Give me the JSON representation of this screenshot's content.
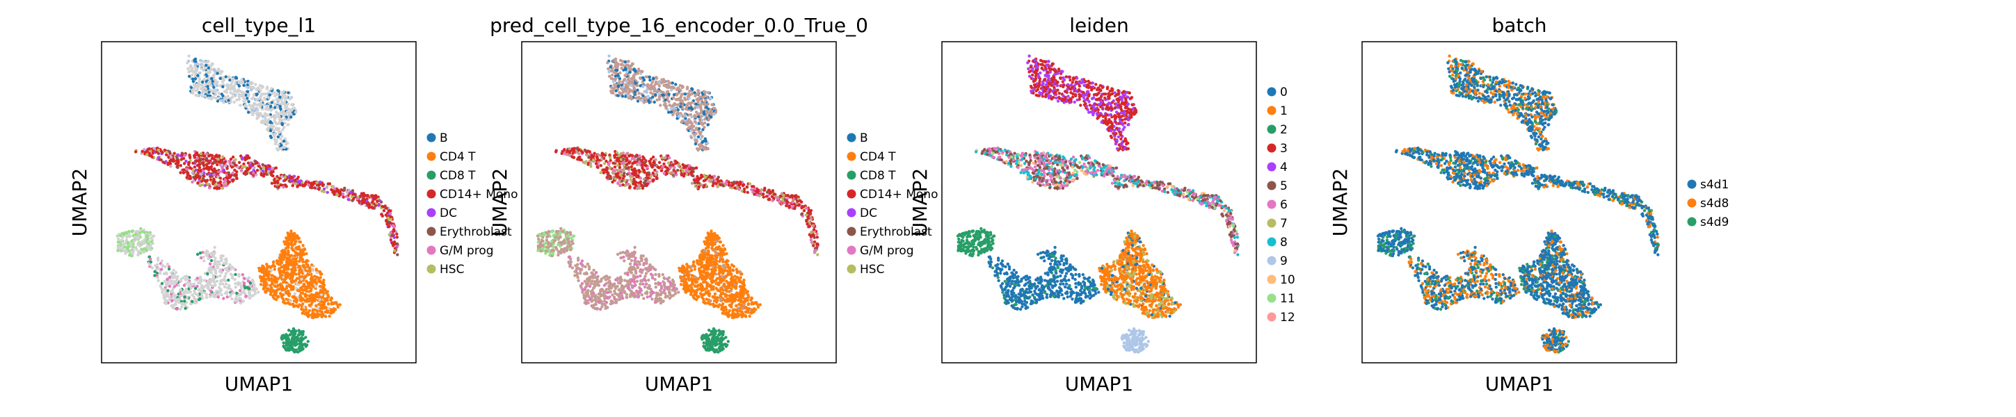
{
  "chart_data": [
    {
      "type": "scatter",
      "title": "cell_type_l1",
      "xlabel": "UMAP1",
      "ylabel": "UMAP2",
      "grid": false,
      "legend_placement": "right",
      "legend": [
        {
          "label": "B",
          "color": "#1f77b4"
        },
        {
          "label": "CD4 T",
          "color": "#ff7f0e"
        },
        {
          "label": "CD8 T",
          "color": "#279e68"
        },
        {
          "label": "CD14+ Mono",
          "color": "#d62728"
        },
        {
          "label": "DC",
          "color": "#aa40fc"
        },
        {
          "label": "Erythroblast",
          "color": "#8c564b"
        },
        {
          "label": "G/M prog",
          "color": "#e377c2"
        },
        {
          "label": "HSC",
          "color": "#b5bd61"
        }
      ],
      "unlabeled_color": "#d3d3d3",
      "clusters": {
        "top_cluster": [
          {
            "color": "#d3d3d3",
            "fraction": 0.75
          },
          {
            "color": "#1f77b4",
            "fraction": 0.2
          },
          {
            "color": "#aec7e8",
            "fraction": 0.05
          }
        ],
        "middle_band": [
          {
            "color": "#d62728",
            "fraction": 0.55
          },
          {
            "color": "#aa40fc",
            "fraction": 0.1
          },
          {
            "color": "#b5bd61",
            "fraction": 0.1
          },
          {
            "color": "#e377c2",
            "fraction": 0.1
          },
          {
            "color": "#c5b0d5",
            "fraction": 0.05
          },
          {
            "color": "#8c564b",
            "fraction": 0.1
          }
        ],
        "bottom_left": [
          {
            "color": "#98df8a",
            "fraction": 0.5
          },
          {
            "color": "#d3d3d3",
            "fraction": 0.5
          }
        ],
        "bottom_mid": [
          {
            "color": "#d3d3d3",
            "fraction": 0.8
          },
          {
            "color": "#279e68",
            "fraction": 0.1
          },
          {
            "color": "#e377c2",
            "fraction": 0.1
          }
        ],
        "bottom_right": [
          {
            "color": "#ff7f0e",
            "fraction": 0.92
          },
          {
            "color": "#d3d3d3",
            "fraction": 0.08
          }
        ],
        "bottom_blob": [
          {
            "color": "#279e68",
            "fraction": 1.0
          }
        ]
      }
    },
    {
      "type": "scatter",
      "title": "pred_cell_type_16_encoder_0.0_True_0",
      "xlabel": "UMAP1",
      "ylabel": "UMAP2",
      "grid": false,
      "legend_placement": "right",
      "legend": [
        {
          "label": "B",
          "color": "#1f77b4"
        },
        {
          "label": "CD4 T",
          "color": "#ff7f0e"
        },
        {
          "label": "CD8 T",
          "color": "#279e68"
        },
        {
          "label": "CD14+ Mono",
          "color": "#d62728"
        },
        {
          "label": "DC",
          "color": "#aa40fc"
        },
        {
          "label": "Erythroblast",
          "color": "#8c564b"
        },
        {
          "label": "G/M prog",
          "color": "#e377c2"
        },
        {
          "label": "HSC",
          "color": "#b5bd61"
        }
      ],
      "clusters": {
        "top_cluster": [
          {
            "color": "#c49c94",
            "fraction": 0.65
          },
          {
            "color": "#1f77b4",
            "fraction": 0.25
          },
          {
            "color": "#aec7e8",
            "fraction": 0.1
          }
        ],
        "middle_band": [
          {
            "color": "#d62728",
            "fraction": 0.55
          },
          {
            "color": "#e377c2",
            "fraction": 0.15
          },
          {
            "color": "#b5bd61",
            "fraction": 0.1
          },
          {
            "color": "#c49c94",
            "fraction": 0.1
          },
          {
            "color": "#8c564b",
            "fraction": 0.1
          }
        ],
        "bottom_left": [
          {
            "color": "#98df8a",
            "fraction": 0.4
          },
          {
            "color": "#c49c94",
            "fraction": 0.6
          }
        ],
        "bottom_mid": [
          {
            "color": "#c49c94",
            "fraction": 0.8
          },
          {
            "color": "#e377c2",
            "fraction": 0.2
          }
        ],
        "bottom_right": [
          {
            "color": "#ff7f0e",
            "fraction": 0.95
          },
          {
            "color": "#c49c94",
            "fraction": 0.05
          }
        ],
        "bottom_blob": [
          {
            "color": "#279e68",
            "fraction": 1.0
          }
        ]
      }
    },
    {
      "type": "scatter",
      "title": "leiden",
      "xlabel": "UMAP1",
      "ylabel": "UMAP2",
      "grid": false,
      "legend_placement": "right",
      "legend": [
        {
          "label": "0",
          "color": "#1f77b4"
        },
        {
          "label": "1",
          "color": "#ff7f0e"
        },
        {
          "label": "2",
          "color": "#279e68"
        },
        {
          "label": "3",
          "color": "#d62728"
        },
        {
          "label": "4",
          "color": "#aa40fc"
        },
        {
          "label": "5",
          "color": "#8c564b"
        },
        {
          "label": "6",
          "color": "#e377c2"
        },
        {
          "label": "7",
          "color": "#b5bd61"
        },
        {
          "label": "8",
          "color": "#17becf"
        },
        {
          "label": "9",
          "color": "#aec7e8"
        },
        {
          "label": "10",
          "color": "#ffbb78"
        },
        {
          "label": "11",
          "color": "#98df8a"
        },
        {
          "label": "12",
          "color": "#ff9896"
        }
      ],
      "clusters": {
        "top_cluster": [
          {
            "color": "#d62728",
            "fraction": 0.6
          },
          {
            "color": "#aa40fc",
            "fraction": 0.4
          }
        ],
        "middle_band": [
          {
            "color": "#8c564b",
            "fraction": 0.35
          },
          {
            "color": "#17becf",
            "fraction": 0.25
          },
          {
            "color": "#e377c2",
            "fraction": 0.3
          },
          {
            "color": "#ffbb78",
            "fraction": 0.05
          },
          {
            "color": "#98df8a",
            "fraction": 0.05
          }
        ],
        "bottom_left": [
          {
            "color": "#279e68",
            "fraction": 1.0
          }
        ],
        "bottom_mid": [
          {
            "color": "#1f77b4",
            "fraction": 0.9
          },
          {
            "color": "#279e68",
            "fraction": 0.1
          }
        ],
        "bottom_right": [
          {
            "color": "#ff7f0e",
            "fraction": 0.75
          },
          {
            "color": "#1f77b4",
            "fraction": 0.1
          },
          {
            "color": "#b5bd61",
            "fraction": 0.15
          }
        ],
        "bottom_blob": [
          {
            "color": "#aec7e8",
            "fraction": 1.0
          }
        ]
      }
    },
    {
      "type": "scatter",
      "title": "batch",
      "xlabel": "UMAP1",
      "ylabel": "UMAP2",
      "grid": false,
      "legend_placement": "right",
      "legend": [
        {
          "label": "s4d1",
          "color": "#1f77b4"
        },
        {
          "label": "s4d8",
          "color": "#ff7f0e"
        },
        {
          "label": "s4d9",
          "color": "#279e68"
        }
      ],
      "clusters": {
        "top_cluster": [
          {
            "color": "#1f77b4",
            "fraction": 0.55
          },
          {
            "color": "#ff7f0e",
            "fraction": 0.3
          },
          {
            "color": "#279e68",
            "fraction": 0.15
          }
        ],
        "middle_band": [
          {
            "color": "#1f77b4",
            "fraction": 0.65
          },
          {
            "color": "#ff7f0e",
            "fraction": 0.2
          },
          {
            "color": "#279e68",
            "fraction": 0.15
          }
        ],
        "bottom_left": [
          {
            "color": "#1f77b4",
            "fraction": 0.8
          },
          {
            "color": "#279e68",
            "fraction": 0.2
          }
        ],
        "bottom_mid": [
          {
            "color": "#1f77b4",
            "fraction": 0.5
          },
          {
            "color": "#ff7f0e",
            "fraction": 0.35
          },
          {
            "color": "#279e68",
            "fraction": 0.15
          }
        ],
        "bottom_right": [
          {
            "color": "#1f77b4",
            "fraction": 0.75
          },
          {
            "color": "#ff7f0e",
            "fraction": 0.15
          },
          {
            "color": "#279e68",
            "fraction": 0.1
          }
        ],
        "bottom_blob": [
          {
            "color": "#1f77b4",
            "fraction": 0.6
          },
          {
            "color": "#ff7f0e",
            "fraction": 0.3
          },
          {
            "color": "#279e68",
            "fraction": 0.1
          }
        ]
      }
    }
  ]
}
